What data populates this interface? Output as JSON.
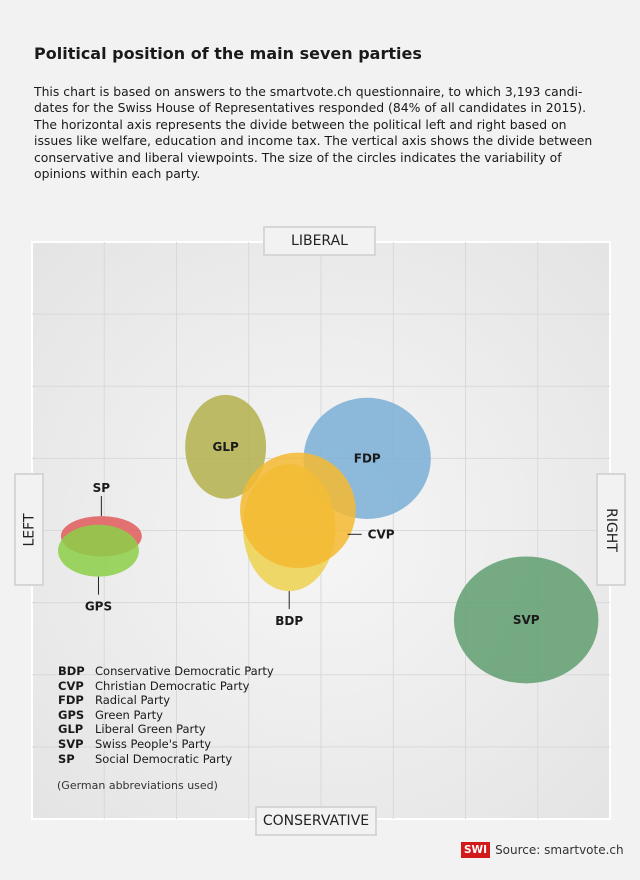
{
  "header": {
    "title": "Political position of the main seven parties",
    "description": "This chart is based on answers to the smartvote.ch questionnaire, to which 3,193 candi-dates for the Swiss House of Representatives responded (84% of all candidates in 2015). The horizontal axis represents the divide between the political left and right based on issues like welfare, education and income tax. The vertical axis shows the divide between conservative and liberal viewpoints. The size of the circles indicates the variability of opinions within each party."
  },
  "chart_data": {
    "type": "scatter",
    "title": "Political position of the main seven parties",
    "axes": {
      "x_negative_label": "LEFT",
      "x_positive_label": "RIGHT",
      "y_positive_label": "LIBERAL",
      "y_negative_label": "CONSERVATIVE",
      "xlim": [
        -1,
        1
      ],
      "ylim": [
        -1,
        1
      ]
    },
    "grid": true,
    "series": [
      {
        "name": "SP",
        "x": -0.76,
        "y": -0.02,
        "rx": 0.14,
        "ry": 0.07,
        "color": "#e05a5a",
        "label_position": "above"
      },
      {
        "name": "GPS",
        "x": -0.77,
        "y": -0.07,
        "rx": 0.14,
        "ry": 0.09,
        "color": "#8ccf47",
        "label_position": "below"
      },
      {
        "name": "GLP",
        "x": -0.33,
        "y": 0.29,
        "rx": 0.14,
        "ry": 0.18,
        "color": "#b4b04c",
        "label_position": "center"
      },
      {
        "name": "FDP",
        "x": 0.16,
        "y": 0.25,
        "rx": 0.22,
        "ry": 0.21,
        "color": "#7aafd6",
        "label_position": "center"
      },
      {
        "name": "BDP",
        "x": -0.11,
        "y": 0.01,
        "rx": 0.16,
        "ry": 0.22,
        "color": "#ecd04e",
        "label_position": "below"
      },
      {
        "name": "CVP",
        "x": -0.08,
        "y": 0.07,
        "rx": 0.2,
        "ry": 0.2,
        "color": "#f5b830",
        "label_position": "right"
      },
      {
        "name": "SVP",
        "x": 0.71,
        "y": -0.31,
        "rx": 0.25,
        "ry": 0.22,
        "color": "#5f9e6e",
        "label_position": "center"
      }
    ]
  },
  "legend": {
    "items": [
      {
        "abbr": "BDP",
        "name": "Conservative Democratic Party"
      },
      {
        "abbr": "CVP",
        "name": "Christian Democratic Party"
      },
      {
        "abbr": "FDP",
        "name": "Radical Party"
      },
      {
        "abbr": "GPS",
        "name": "Green Party"
      },
      {
        "abbr": "GLP",
        "name": "Liberal Green Party"
      },
      {
        "abbr": "SVP",
        "name": "Swiss People's Party"
      },
      {
        "abbr": "SP",
        "name": "Social Democratic Party"
      }
    ],
    "note": "(German abbreviations used)"
  },
  "footer": {
    "logo": "SWI",
    "source": "Source: smartvote.ch"
  }
}
